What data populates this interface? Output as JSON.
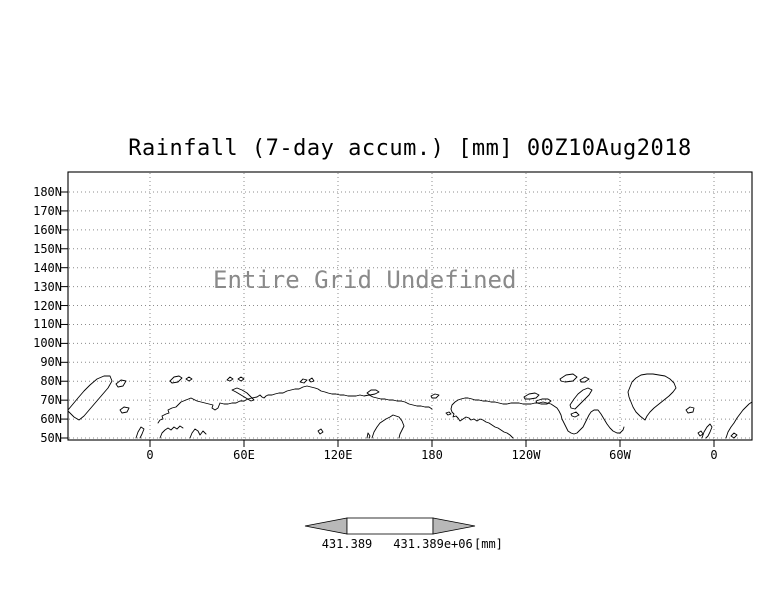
{
  "chart_data": {
    "type": "heatmap",
    "title": "Rainfall (7-day accum.) [mm] 00Z10Aug2018",
    "annotation": "Entire Grid Undefined",
    "data_status": "entire grid undefined - no field values plotted, only map coastlines",
    "projection": "latlon world map, longitudes wrap beyond 0-360",
    "yticks": [
      "180N",
      "170N",
      "160N",
      "150N",
      "140N",
      "130N",
      "120N",
      "110N",
      "100N",
      "90N",
      "80N",
      "70N",
      "60N",
      "50N"
    ],
    "xticks": [
      "0",
      "60E",
      "120E",
      "180",
      "120W",
      "60W",
      "0"
    ],
    "grid": "dotted",
    "legend_position": "bottom-center colorbar with left and right arrow ends",
    "colorbar": {
      "left_label": "431.389",
      "right_label": "431.389e+06",
      "units": "[mm]"
    },
    "colors": {
      "coastline": "#000000",
      "grid": "#8c8c8c",
      "annotation": "#8a8a8a",
      "colorbar_arrow": "#b8b8b8",
      "colorbar_box": "#ffffff"
    }
  }
}
